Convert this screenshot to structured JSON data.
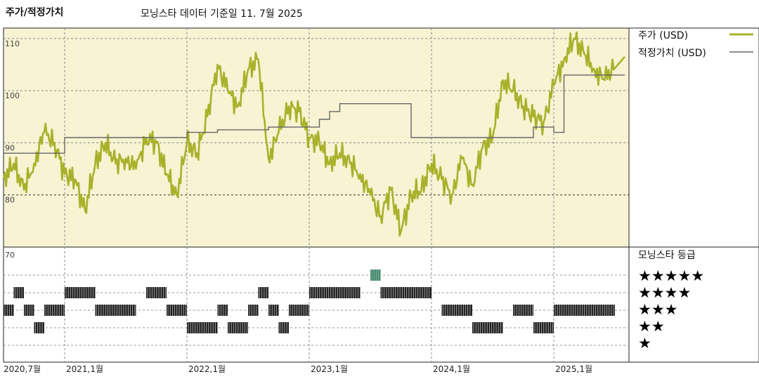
{
  "header": {
    "section_title": "주가/적정가치",
    "source_note": "모닝스타 데이터 기준일 11. 7월 2025"
  },
  "colors": {
    "price": "#a8b12a",
    "fair": "#666666",
    "panel_bg": "#f7f3d3",
    "highlight": "#4b8b73"
  },
  "legend": {
    "price_label": "주가 (USD)",
    "fair_label": "적정가치 (USD)",
    "rating_title": "모닝스타 등급",
    "stars": [
      "★★★★★",
      "★★★★",
      "★★★",
      "★★",
      "★"
    ]
  },
  "chart_data": [
    {
      "type": "line",
      "title": "주가/적정가치",
      "ylim": [
        70,
        112
      ],
      "yticks": [
        "110",
        "100",
        "90",
        "80",
        "70"
      ],
      "xticks": [
        "2020,7월",
        "2021,1월",
        "2022,1월",
        "2023,1월",
        "2024,1월",
        "2025,1월"
      ],
      "xrange": [
        "2020-07",
        "2025-08"
      ],
      "series": [
        {
          "name": "주가 (USD)",
          "x": [
            "2020-07",
            "2020-08",
            "2020-09",
            "2020-10",
            "2020-11",
            "2020-12",
            "2021-01",
            "2021-02",
            "2021-03",
            "2021-04",
            "2021-05",
            "2021-06",
            "2021-07",
            "2021-08",
            "2021-09",
            "2021-10",
            "2021-11",
            "2021-12",
            "2022-01",
            "2022-02",
            "2022-03",
            "2022-04",
            "2022-05",
            "2022-06",
            "2022-07",
            "2022-08",
            "2022-09",
            "2022-10",
            "2022-11",
            "2022-12",
            "2023-01",
            "2023-02",
            "2023-03",
            "2023-04",
            "2023-05",
            "2023-06",
            "2023-07",
            "2023-08",
            "2023-09",
            "2023-10",
            "2023-11",
            "2023-12",
            "2024-01",
            "2024-02",
            "2024-03",
            "2024-04",
            "2024-05",
            "2024-06",
            "2024-07",
            "2024-08",
            "2024-09",
            "2024-10",
            "2024-11",
            "2024-12",
            "2025-01",
            "2025-02",
            "2025-03",
            "2025-04",
            "2025-05",
            "2025-06",
            "2025-07"
          ],
          "values": [
            83,
            86,
            81,
            86,
            92,
            90,
            84,
            83,
            77,
            86,
            90,
            86,
            87,
            85,
            91,
            90,
            84,
            80,
            90,
            88,
            95,
            105,
            100,
            97,
            104,
            106,
            87,
            92,
            97,
            96,
            91,
            90,
            86,
            88,
            86,
            84,
            80,
            76,
            81,
            73,
            80,
            81,
            86,
            83,
            80,
            87,
            82,
            89,
            91,
            102,
            100,
            97,
            95,
            94,
            101,
            106,
            110,
            107,
            104,
            102,
            105
          ]
        },
        {
          "name": "적정가치 (USD)",
          "x": [
            "2020-07",
            "2020-12",
            "2021-01",
            "2021-09",
            "2022-01",
            "2022-03",
            "2022-04",
            "2022-09",
            "2022-11",
            "2023-01",
            "2023-02",
            "2023-03",
            "2023-04",
            "2023-10",
            "2023-11",
            "2024-05",
            "2024-10",
            "2024-11",
            "2025-01",
            "2025-02",
            "2025-04",
            "2025-07"
          ],
          "values": [
            88,
            88,
            91,
            91,
            92,
            92,
            92.5,
            93,
            93,
            93,
            94.5,
            96,
            97.5,
            97.5,
            91,
            91,
            91,
            93,
            92,
            103,
            103,
            103
          ]
        }
      ]
    },
    {
      "type": "table",
      "title": "모닝스타 등급",
      "levels": [
        5,
        4,
        3,
        2,
        1
      ],
      "periods": [
        {
          "start": "2020-07",
          "end": "2020-08",
          "stars": 3
        },
        {
          "start": "2020-08",
          "end": "2020-09",
          "stars": 4
        },
        {
          "start": "2020-09",
          "end": "2020-10",
          "stars": 3
        },
        {
          "start": "2020-10",
          "end": "2020-11",
          "stars": 2
        },
        {
          "start": "2020-11",
          "end": "2021-01",
          "stars": 3
        },
        {
          "start": "2021-01",
          "end": "2021-04",
          "stars": 4
        },
        {
          "start": "2021-04",
          "end": "2021-08",
          "stars": 3
        },
        {
          "start": "2021-09",
          "end": "2021-11",
          "stars": 4
        },
        {
          "start": "2021-11",
          "end": "2022-01",
          "stars": 3
        },
        {
          "start": "2022-01",
          "end": "2022-04",
          "stars": 2
        },
        {
          "start": "2022-04",
          "end": "2022-05",
          "stars": 3
        },
        {
          "start": "2022-05",
          "end": "2022-07",
          "stars": 2
        },
        {
          "start": "2022-07",
          "end": "2022-08",
          "stars": 3
        },
        {
          "start": "2022-08",
          "end": "2022-09",
          "stars": 4
        },
        {
          "start": "2022-09",
          "end": "2022-10",
          "stars": 3
        },
        {
          "start": "2022-10",
          "end": "2022-11",
          "stars": 2
        },
        {
          "start": "2022-11",
          "end": "2023-01",
          "stars": 3
        },
        {
          "start": "2023-01",
          "end": "2023-06",
          "stars": 4
        },
        {
          "start": "2023-07",
          "end": "2023-08",
          "stars": 5
        },
        {
          "start": "2023-08",
          "end": "2024-01",
          "stars": 4
        },
        {
          "start": "2024-02",
          "end": "2024-05",
          "stars": 3
        },
        {
          "start": "2024-05",
          "end": "2024-08",
          "stars": 2
        },
        {
          "start": "2024-09",
          "end": "2024-11",
          "stars": 3
        },
        {
          "start": "2024-11",
          "end": "2025-01",
          "stars": 2
        },
        {
          "start": "2025-01",
          "end": "2025-07",
          "stars": 3
        }
      ]
    }
  ]
}
